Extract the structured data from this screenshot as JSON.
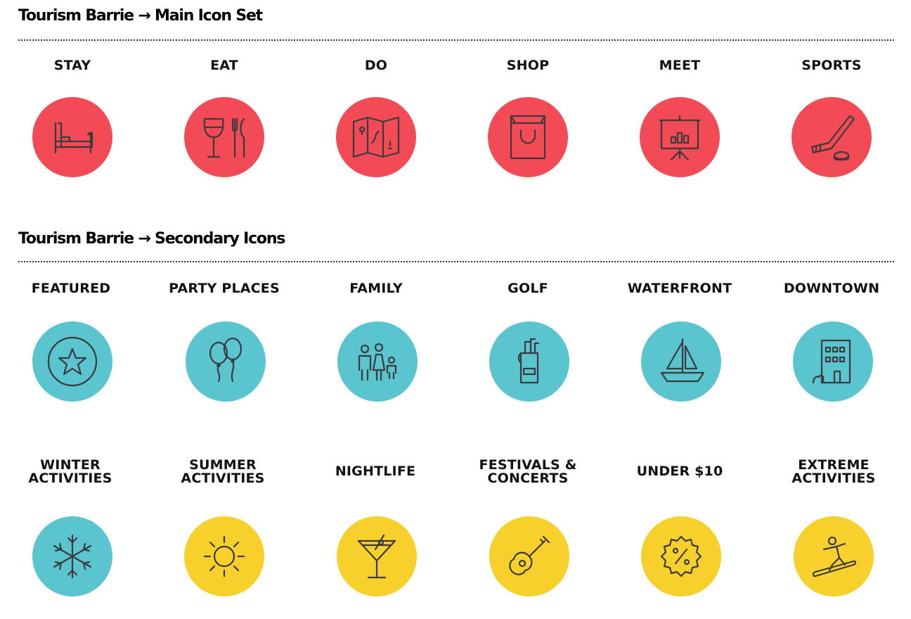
{
  "colors": {
    "red": "#f24b55",
    "teal": "#5bc5cf",
    "yellow": "#f7d02c",
    "ink": "#3a3a3f"
  },
  "sections": {
    "main": {
      "title": "Tourism Barrie → Main Icon Set",
      "items": [
        {
          "label": "STAY",
          "icon": "bed-icon",
          "color": "red"
        },
        {
          "label": "EAT",
          "icon": "wine-glass-fork-knife-icon",
          "color": "red"
        },
        {
          "label": "DO",
          "icon": "map-icon",
          "color": "red"
        },
        {
          "label": "SHOP",
          "icon": "shopping-bag-icon",
          "color": "red"
        },
        {
          "label": "MEET",
          "icon": "presentation-board-icon",
          "color": "red"
        },
        {
          "label": "SPORTS",
          "icon": "hockey-stick-puck-icon",
          "color": "red"
        }
      ]
    },
    "secondary": {
      "title": "Tourism Barrie → Secondary Icons",
      "row1": [
        {
          "label": "FEATURED",
          "icon": "star-icon",
          "color": "teal"
        },
        {
          "label": "PARTY PLACES",
          "icon": "balloons-icon",
          "color": "teal"
        },
        {
          "label": "FAMILY",
          "icon": "family-icon",
          "color": "teal"
        },
        {
          "label": "GOLF",
          "icon": "golf-bag-icon",
          "color": "teal"
        },
        {
          "label": "WATERFRONT",
          "icon": "sailboat-icon",
          "color": "teal"
        },
        {
          "label": "DOWNTOWN",
          "icon": "building-icon",
          "color": "teal"
        }
      ],
      "row2": [
        {
          "line1": "WINTER",
          "line2": "ACTIVITIES",
          "icon": "snowflake-icon",
          "color": "teal"
        },
        {
          "line1": "SUMMER",
          "line2": "ACTIVITIES",
          "icon": "sun-icon",
          "color": "yellow"
        },
        {
          "line1": "NIGHTLIFE",
          "line2": "",
          "icon": "martini-glass-icon",
          "color": "yellow"
        },
        {
          "line1": "FESTIVALS &",
          "line2": "CONCERTS",
          "icon": "guitar-icon",
          "color": "yellow"
        },
        {
          "line1": "UNDER $10",
          "line2": "",
          "icon": "percent-badge-icon",
          "color": "yellow"
        },
        {
          "line1": "EXTREME",
          "line2": "ACTIVITIES",
          "icon": "snowboarder-icon",
          "color": "yellow"
        }
      ]
    }
  }
}
